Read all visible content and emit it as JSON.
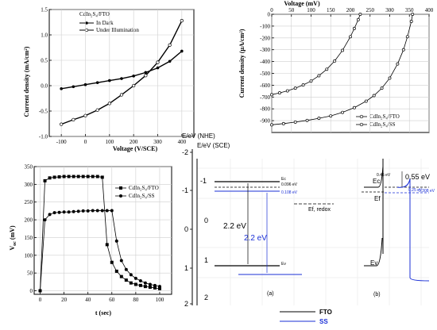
{
  "chart_data": [
    {
      "type": "line",
      "xlabel": "Voltage (V/SCE)",
      "ylabel": "Current density (mA/cm²)",
      "xlim": [
        -150,
        450
      ],
      "ylim": [
        -1.0,
        1.5
      ],
      "xticks": [
        "-100",
        "0",
        "100",
        "200",
        "300",
        "400"
      ],
      "yticks": [
        "-1.0",
        "-0.5",
        "0.0",
        "0.5",
        "1.0",
        "1.5"
      ],
      "legend_title": "CdIn₂S₄/FTO",
      "legend_position": "top-left",
      "grid": true,
      "series": [
        {
          "name": "In Dark",
          "marker": "filled-circle",
          "color": "#000000",
          "x": [
            -100,
            -50,
            0,
            50,
            100,
            150,
            200,
            250,
            300,
            350,
            400
          ],
          "y": [
            -0.06,
            -0.02,
            0.02,
            0.06,
            0.1,
            0.14,
            0.19,
            0.26,
            0.35,
            0.48,
            0.68
          ]
        },
        {
          "name": "Under Illumination",
          "marker": "open-circle",
          "color": "#000000",
          "x": [
            -100,
            -50,
            0,
            50,
            100,
            150,
            200,
            250,
            300,
            350,
            400
          ],
          "y": [
            -0.76,
            -0.67,
            -0.59,
            -0.48,
            -0.35,
            -0.18,
            0.0,
            0.2,
            0.46,
            0.8,
            1.28
          ]
        }
      ]
    },
    {
      "type": "line",
      "xlabel": "Voltage (mV)",
      "ylabel": "Current density (µA/cm²)",
      "x_axis_position": "top",
      "xlim": [
        0,
        400
      ],
      "ylim": [
        -1000,
        0
      ],
      "xticks": [
        "0",
        "50",
        "100",
        "150",
        "200",
        "250",
        "300",
        "350",
        "400"
      ],
      "yticks": [
        "0",
        "-100",
        "-200",
        "-300",
        "-400",
        "-500",
        "-600",
        "-700",
        "-800",
        "-900"
      ],
      "legend_position": "bottom-right",
      "grid": true,
      "series": [
        {
          "name": "CdIn₂S₄/FTO",
          "marker": "open-circle",
          "color": "#000000",
          "x": [
            0,
            20,
            40,
            60,
            80,
            100,
            120,
            140,
            160,
            180,
            200,
            210,
            220,
            225
          ],
          "y": [
            -680,
            -665,
            -648,
            -625,
            -598,
            -565,
            -520,
            -465,
            -395,
            -305,
            -190,
            -120,
            -45,
            0
          ]
        },
        {
          "name": "CdIn₂S₄/SS",
          "marker": "open-circle",
          "color": "#000000",
          "x": [
            0,
            30,
            60,
            90,
            120,
            150,
            180,
            210,
            240,
            260,
            280,
            300,
            320,
            335,
            345,
            355,
            358
          ],
          "y": [
            -935,
            -925,
            -912,
            -898,
            -880,
            -860,
            -830,
            -790,
            -735,
            -688,
            -625,
            -540,
            -420,
            -300,
            -190,
            -60,
            0
          ]
        }
      ]
    },
    {
      "type": "line",
      "xlabel": "t (sec)",
      "ylabel": "Voc (mV)",
      "xlim": [
        -5,
        110
      ],
      "ylim": [
        -10,
        350
      ],
      "xticks": [
        "0",
        "20",
        "40",
        "60",
        "80",
        "100"
      ],
      "yticks": [
        "0",
        "50",
        "100",
        "150",
        "200",
        "250",
        "300",
        "350"
      ],
      "legend_position": "top-right",
      "grid": true,
      "series": [
        {
          "name": "CdIn₂S₄/FTO",
          "marker": "filled-square",
          "color": "#000000",
          "x": [
            0,
            4,
            8,
            12,
            16,
            20,
            24,
            28,
            32,
            36,
            40,
            44,
            48,
            52,
            56,
            60,
            64,
            68,
            72,
            76,
            80,
            84,
            88,
            92,
            96,
            100
          ],
          "y": [
            0,
            310,
            318,
            320,
            321,
            322,
            322,
            322,
            322,
            322,
            322,
            322,
            322,
            320,
            130,
            80,
            55,
            40,
            30,
            22,
            18,
            15,
            12,
            10,
            8,
            6
          ]
        },
        {
          "name": "CdIn₂S₄/SS",
          "marker": "filled-circle",
          "color": "#000000",
          "x": [
            0,
            4,
            8,
            12,
            16,
            20,
            24,
            28,
            32,
            36,
            40,
            44,
            48,
            52,
            56,
            60,
            64,
            68,
            72,
            76,
            80,
            84,
            88,
            92,
            96,
            100
          ],
          "y": [
            0,
            200,
            215,
            220,
            221,
            222,
            222,
            223,
            224,
            225,
            225,
            226,
            226,
            226,
            226,
            226,
            140,
            85,
            60,
            45,
            35,
            28,
            22,
            18,
            15,
            12
          ]
        }
      ]
    }
  ],
  "band_diagram": {
    "axis_nhe_label": "E/eV (NHE)",
    "axis_sce_label": "E/eV (SCE)",
    "nhe_ticks": [
      "-2",
      "-1",
      "0",
      "1",
      "2"
    ],
    "sce_ticks": [
      "-1",
      "0",
      "1",
      "2"
    ],
    "labels": {
      "ec": "Ec",
      "ef": "Ef",
      "ev": "Ev",
      "ec_b": "Ec",
      "ef_b": "Ef",
      "ev_b": "Ev",
      "val_0096": "0.096 eV",
      "val_0108": "0.108 eV",
      "gap_black": "2.2 eV",
      "gap_blue": "2.2 eV",
      "ef_redox": "Ef, redox",
      "val_045": "0.45 eV",
      "val_055": "0.55 eV",
      "val_0308": "0.308 eV",
      "val_025": "0.25 eV",
      "panel_a": "(a)",
      "panel_b": "(b)"
    },
    "legend": [
      {
        "label": "FTO",
        "color": "#000000"
      },
      {
        "label": "SS",
        "color": "#1a2fd6"
      }
    ]
  }
}
